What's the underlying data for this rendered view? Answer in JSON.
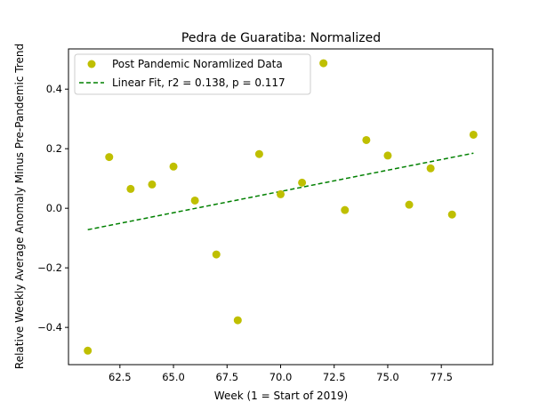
{
  "chart_data": {
    "type": "scatter",
    "title": "Pedra de Guaratiba: Normalized",
    "xlabel": "Week (1 = Start of 2019)",
    "ylabel": "Relative Weekly Average Anomaly Minus Pre-Pandemic Trend",
    "xlim": [
      60.1,
      79.9
    ],
    "ylim": [
      -0.525,
      0.535
    ],
    "xticks": [
      62.5,
      65.0,
      67.5,
      70.0,
      72.5,
      75.0,
      77.5
    ],
    "xtick_labels": [
      "62.5",
      "65.0",
      "67.5",
      "70.0",
      "72.5",
      "75.0",
      "77.5"
    ],
    "yticks": [
      -0.4,
      -0.2,
      0.0,
      0.2,
      0.4
    ],
    "ytick_labels": [
      "−0.4",
      "−0.2",
      "0.0",
      "0.2",
      "0.4"
    ],
    "grid": false,
    "legend_position": "upper-left",
    "series": [
      {
        "name": "Post Pandemic Noramlized Data",
        "kind": "scatter",
        "color": "#bfbf00",
        "x": [
          61,
          62,
          63,
          64,
          65,
          66,
          67,
          68,
          69,
          70,
          71,
          72,
          73,
          74,
          75,
          76,
          77,
          78,
          79
        ],
        "y": [
          -0.478,
          0.172,
          0.065,
          0.08,
          0.14,
          0.026,
          -0.155,
          -0.376,
          0.182,
          0.047,
          0.086,
          0.487,
          -0.006,
          0.229,
          0.177,
          0.012,
          0.134,
          -0.021,
          0.247
        ]
      },
      {
        "name": "Linear Fit, r2 = 0.138, p = 0.117",
        "kind": "line",
        "style": "dashed",
        "color": "#008000",
        "x": [
          61,
          79
        ],
        "y": [
          -0.072,
          0.185
        ]
      }
    ]
  }
}
